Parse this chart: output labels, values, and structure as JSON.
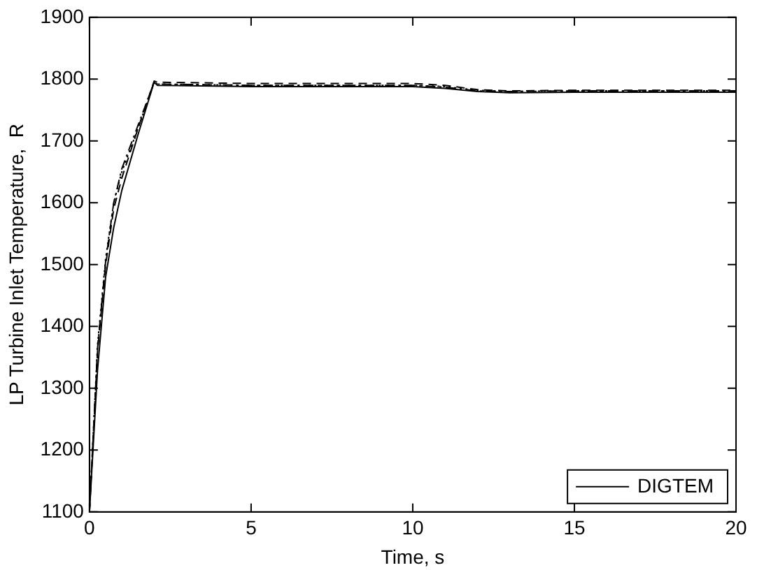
{
  "chart_data": {
    "type": "line",
    "xlabel": "Time, s",
    "ylabel": "LP Turbine Inlet Temperature,  R",
    "xlim": [
      0,
      20
    ],
    "xticks": [
      0,
      5,
      10,
      15,
      20
    ],
    "ylim": [
      1100,
      1900
    ],
    "yticks": [
      1100,
      1200,
      1300,
      1400,
      1500,
      1600,
      1700,
      1800,
      1900
    ],
    "grid": false,
    "legend": "bottom right",
    "marker": "none",
    "x": [
      0,
      0.25,
      0.5,
      0.75,
      1,
      1.5,
      2,
      2.1,
      5,
      10,
      11,
      12,
      13,
      15,
      20
    ],
    "series": [
      {
        "color": "#000000",
        "line_style": "dotted",
        "values": [
          1100,
          1370,
          1510,
          1600,
          1650,
          1720,
          1795,
          1792,
          1790,
          1790,
          1788,
          1782,
          1780,
          1781,
          1781
        ]
      },
      {
        "color": "#000000",
        "line_style": "dashed",
        "values": [
          1100,
          1360,
          1500,
          1590,
          1640,
          1720,
          1797,
          1795,
          1793,
          1793,
          1790,
          1783,
          1781,
          1782,
          1782
        ]
      },
      {
        "color": "#000000",
        "line_style": "dashdot",
        "values": [
          1100,
          1365,
          1505,
          1600,
          1655,
          1725,
          1795,
          1792,
          1790,
          1790,
          1787,
          1781,
          1780,
          1781,
          1781
        ]
      },
      {
        "name": "DIGTEM",
        "color": "#000000",
        "line_style": "solid",
        "values": [
          1100,
          1330,
          1480,
          1560,
          1620,
          1710,
          1795,
          1790,
          1788,
          1788,
          1785,
          1780,
          1778,
          1779,
          1779
        ]
      }
    ]
  }
}
